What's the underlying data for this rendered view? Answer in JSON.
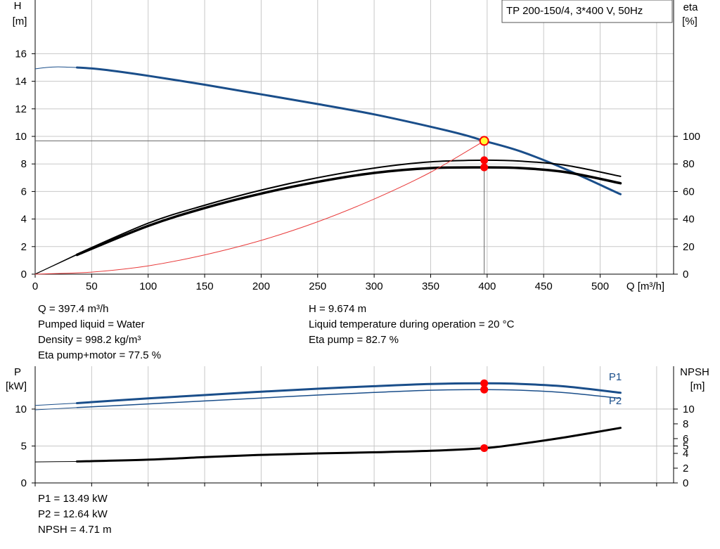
{
  "legend_box": {
    "text": "TP 200-150/4, 3*400 V, 50Hz"
  },
  "colors": {
    "grid": "#c8c8c8",
    "head": "#1a4e8a",
    "power": "#1a4e8a",
    "eta": "#000000",
    "system": "#e83a3a",
    "duty_marker": "#ff0000",
    "duty_fill": "#ffff33"
  },
  "chart_data": [
    {
      "type": "line",
      "title": "",
      "xlabel": "Q [m³/h]",
      "ylabel": {
        "name": "H",
        "unit": "[m]"
      },
      "y2label": {
        "name": "eta",
        "unit": "[%]"
      },
      "xlim": [
        0,
        565
      ],
      "ylim": [
        0,
        19.9
      ],
      "y2lim": [
        0,
        199
      ],
      "xticks": [
        "0",
        "50",
        "100",
        "150",
        "200",
        "250",
        "300",
        "350",
        "400",
        "450",
        "500"
      ],
      "yticks": [
        "0",
        "2",
        "4",
        "6",
        "8",
        "10",
        "12",
        "14",
        "16"
      ],
      "y2ticks": [
        "0",
        "20",
        "40",
        "60",
        "80",
        "100"
      ],
      "grid": true,
      "series": [
        {
          "name": "",
          "curve": "H",
          "axis": "left",
          "width": 3,
          "x": [
            37,
            60,
            100,
            150,
            200,
            250,
            300,
            350,
            380,
            397.4,
            430,
            470,
            518
          ],
          "y": [
            15.0,
            14.85,
            14.4,
            13.75,
            13.05,
            12.35,
            11.6,
            10.7,
            10.1,
            9.674,
            8.9,
            7.6,
            5.8
          ],
          "lead_in": {
            "x": [
              0,
              10,
              20,
              30,
              37
            ],
            "y": [
              14.9,
              15.0,
              15.05,
              15.02,
              15.0
            ]
          }
        },
        {
          "name": "",
          "curve": "eta_pump",
          "axis": "right",
          "width": 2,
          "x": [
            37,
            100,
            150,
            200,
            250,
            300,
            350,
            397.4,
            430,
            470,
            518
          ],
          "y": [
            14.5,
            37,
            50,
            61,
            70,
            77,
            81.5,
            82.7,
            82,
            79,
            71
          ],
          "lead_in": {
            "x": [
              0,
              37
            ],
            "y": [
              0,
              14.5
            ]
          }
        },
        {
          "name": "",
          "curve": "eta_pump_motor",
          "axis": "right",
          "width": 3.5,
          "x": [
            37,
            100,
            150,
            200,
            250,
            300,
            350,
            397.4,
            430,
            470,
            518
          ],
          "y": [
            14,
            35,
            48,
            58.5,
            67,
            73.5,
            77,
            77.5,
            77,
            74,
            66
          ],
          "lead_in": {
            "x": [
              0,
              37
            ],
            "y": [
              0,
              14
            ]
          }
        },
        {
          "name": "",
          "curve": "system",
          "axis": "left",
          "width": 1,
          "x": [
            0,
            50,
            100,
            150,
            200,
            250,
            300,
            350,
            397.4
          ],
          "y": [
            0,
            0.15,
            0.6,
            1.4,
            2.45,
            3.8,
            5.45,
            7.4,
            9.674
          ]
        }
      ],
      "duty_point": {
        "x": 397.4,
        "H": 9.674,
        "eta_pump": 82.7,
        "eta_pump_motor": 77.5
      }
    },
    {
      "type": "line",
      "title": "",
      "ylabel": {
        "name": "P",
        "unit": "[kW]"
      },
      "y2label": {
        "name": "NPSH",
        "unit": "[m]"
      },
      "xlim": [
        0,
        565
      ],
      "ylim": [
        0,
        15.8
      ],
      "y2lim": [
        0,
        15.8
      ],
      "yticks": [
        "0",
        "5",
        "10"
      ],
      "y2ticks": [
        "0",
        "2",
        "4",
        "5",
        "6",
        "8",
        "10"
      ],
      "grid": true,
      "series": [
        {
          "name": "P1",
          "curve": "P1",
          "axis": "left",
          "width": 3,
          "x": [
            37,
            100,
            150,
            200,
            250,
            300,
            350,
            397.4,
            430,
            470,
            518
          ],
          "y": [
            10.8,
            11.45,
            11.9,
            12.35,
            12.75,
            13.1,
            13.4,
            13.49,
            13.4,
            13.05,
            12.2
          ],
          "lead_in": {
            "x": [
              0,
              37
            ],
            "y": [
              10.5,
              10.8
            ]
          }
        },
        {
          "name": "P2",
          "curve": "P2",
          "axis": "left",
          "width": 1.5,
          "x": [
            37,
            100,
            150,
            200,
            250,
            300,
            350,
            397.4,
            430,
            470,
            518
          ],
          "y": [
            10.2,
            10.7,
            11.1,
            11.5,
            11.9,
            12.25,
            12.55,
            12.64,
            12.55,
            12.2,
            11.45
          ],
          "lead_in": {
            "x": [
              0,
              37
            ],
            "y": [
              9.9,
              10.2
            ]
          }
        },
        {
          "name": "",
          "curve": "NPSH",
          "axis": "right",
          "width": 3,
          "x": [
            37,
            100,
            150,
            200,
            250,
            300,
            350,
            397.4,
            430,
            470,
            518
          ],
          "y": [
            2.9,
            3.15,
            3.5,
            3.8,
            4.0,
            4.15,
            4.35,
            4.71,
            5.3,
            6.2,
            7.45
          ],
          "lead_in": {
            "x": [
              0,
              37
            ],
            "y": [
              2.85,
              2.9
            ]
          }
        }
      ],
      "duty_point": {
        "x": 397.4,
        "P1": 13.49,
        "P2": 12.64,
        "NPSH": 4.71
      }
    }
  ],
  "info_top": {
    "left": [
      "Q = 397.4 m³/h",
      "Pumped liquid = Water",
      "Density = 998.2 kg/m³",
      "Eta pump+motor = 77.5 %"
    ],
    "right": [
      "H = 9.674 m",
      "Liquid temperature during operation = 20 °C",
      "Eta pump = 82.7 %"
    ]
  },
  "info_bottom": [
    "P1 = 13.49 kW",
    "P2 = 12.64 kW",
    "NPSH = 4.71 m"
  ]
}
